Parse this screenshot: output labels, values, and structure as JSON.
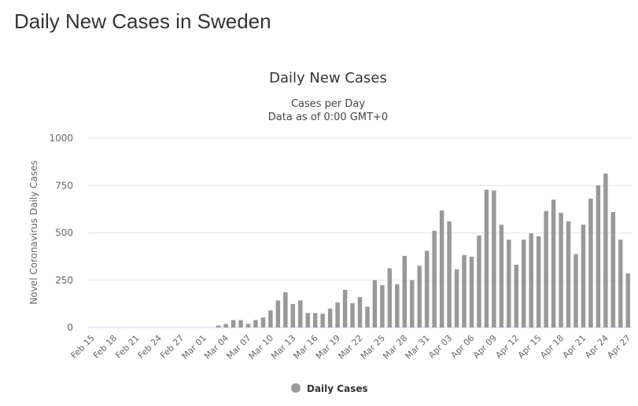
{
  "page": {
    "title": "Daily New Cases in Sweden"
  },
  "colors": {
    "bar": "#999999",
    "grid": "#e6e6e6",
    "axis": "#ccd6eb"
  },
  "chart_data": {
    "type": "bar",
    "title": "Daily New Cases",
    "subtitle_lines": [
      "Cases per Day",
      "Data as of 0:00 GMT+0"
    ],
    "xlabel": "",
    "ylabel": "Novel Coronavirus Daily Cases",
    "ylim": [
      0,
      1000
    ],
    "yticks": [
      0,
      250,
      500,
      750,
      1000
    ],
    "grid": true,
    "legend": {
      "position": "bottom-center",
      "entries": [
        "Daily Cases"
      ]
    },
    "x_tick_labels": [
      "Feb 15",
      "Feb 18",
      "Feb 21",
      "Feb 24",
      "Feb 27",
      "Mar 01",
      "Mar 04",
      "Mar 07",
      "Mar 10",
      "Mar 13",
      "Mar 16",
      "Mar 19",
      "Mar 22",
      "Mar 25",
      "Mar 28",
      "Mar 31",
      "Apr 03",
      "Apr 06",
      "Apr 09",
      "Apr 12",
      "Apr 15",
      "Apr 18",
      "Apr 21",
      "Apr 24",
      "Apr 27"
    ],
    "series": [
      {
        "name": "Daily Cases",
        "values": [
          0,
          0,
          0,
          0,
          0,
          0,
          0,
          0,
          0,
          0,
          0,
          0,
          0,
          0,
          0,
          0,
          0,
          10,
          19,
          39,
          39,
          19,
          39,
          53,
          90,
          143,
          186,
          124,
          143,
          76,
          76,
          72,
          100,
          132,
          199,
          128,
          161,
          110,
          250,
          224,
          313,
          228,
          378,
          250,
          326,
          405,
          511,
          618,
          561,
          307,
          383,
          374,
          486,
          728,
          724,
          543,
          464,
          332,
          464,
          497,
          482,
          615,
          675,
          606,
          561,
          388,
          543,
          681,
          751,
          813,
          610,
          464,
          285
        ]
      }
    ]
  }
}
